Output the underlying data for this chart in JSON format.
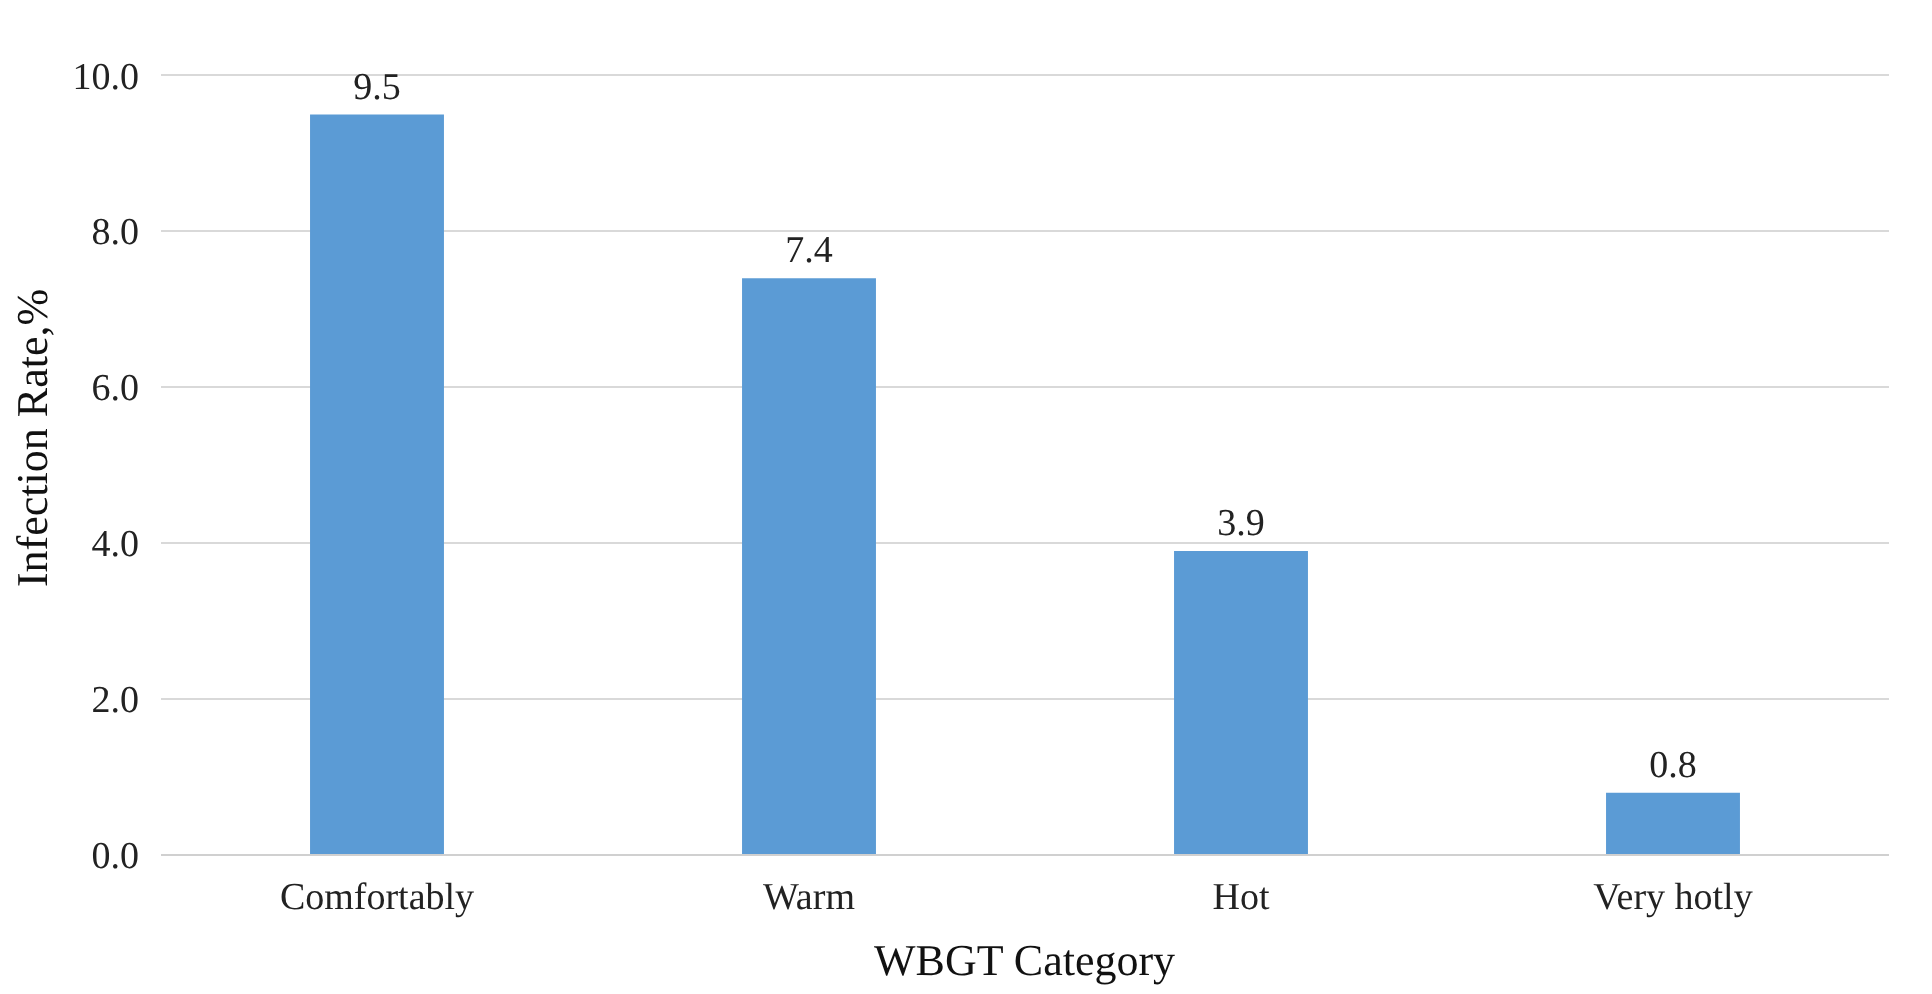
{
  "chart_data": {
    "type": "bar",
    "xlabel": "WBGT Category",
    "ylabel": "Infection Rate,%",
    "categories": [
      "Comfortably",
      "Warm",
      "Hot",
      "Very hotly"
    ],
    "values": [
      9.5,
      7.4,
      3.9,
      0.8
    ],
    "color": "#5b9bd5",
    "ylim": [
      0,
      10
    ],
    "yticks": [
      {
        "value": 0,
        "label": "0.0"
      },
      {
        "value": 2,
        "label": "2.0"
      },
      {
        "value": 4,
        "label": "4.0"
      },
      {
        "value": 6,
        "label": "6.0"
      },
      {
        "value": 8,
        "label": "8.0"
      },
      {
        "value": 10,
        "label": "10.0"
      }
    ],
    "grid": "y",
    "data_labels": true
  }
}
